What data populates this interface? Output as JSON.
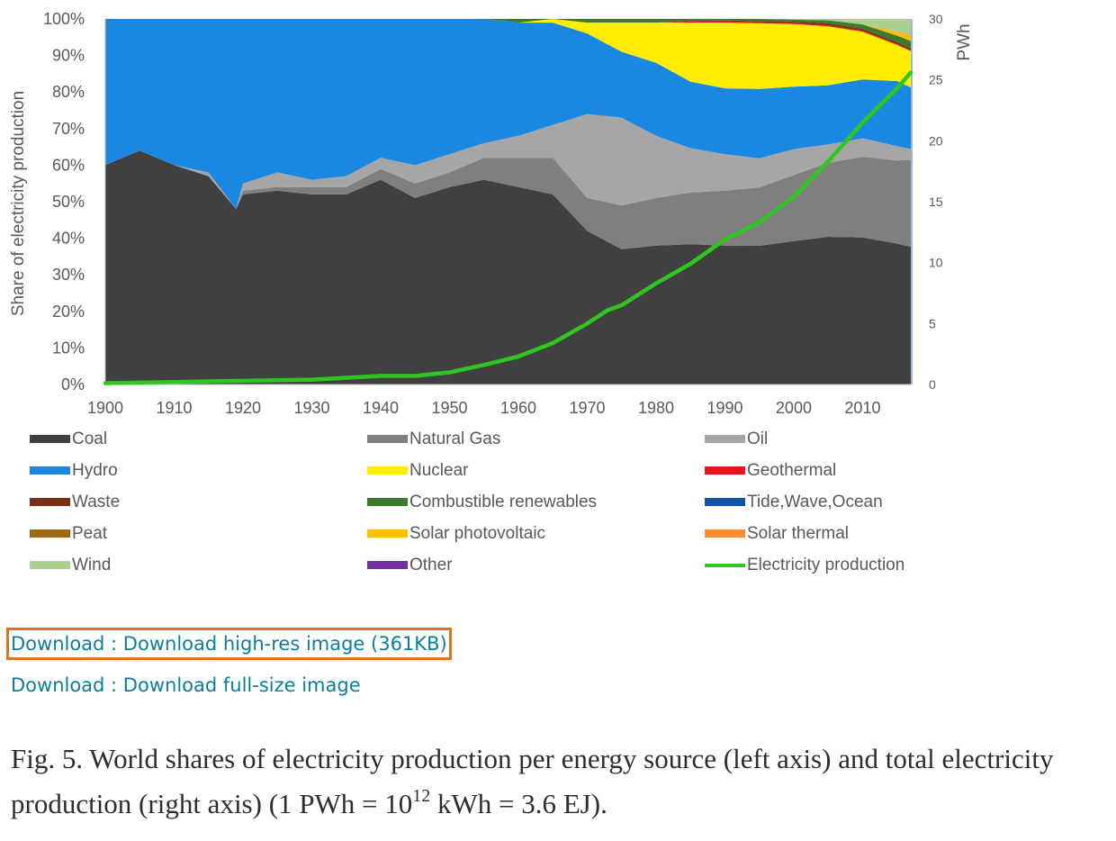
{
  "chart_data": {
    "type": "area",
    "stacking": "percent",
    "x": [
      1900,
      1905,
      1910,
      1915,
      1919,
      1920,
      1925,
      1930,
      1935,
      1940,
      1945,
      1950,
      1955,
      1960,
      1965,
      1970,
      1975,
      1980,
      1985,
      1990,
      1995,
      2000,
      2005,
      2010,
      2015,
      2017
    ],
    "series": [
      {
        "name": "Coal",
        "values": [
          60,
          64,
          60,
          57,
          48,
          52,
          53,
          52,
          52,
          56,
          51,
          54,
          56,
          54,
          52,
          42,
          37,
          38,
          38,
          38,
          38,
          39,
          40,
          40,
          39,
          38
        ]
      },
      {
        "name": "Natural Gas",
        "values": [
          0,
          0,
          0,
          0,
          0,
          1,
          1,
          2,
          2,
          3,
          4,
          4,
          6,
          8,
          10,
          9,
          12,
          13,
          14,
          15,
          16,
          18,
          20,
          22,
          23,
          24
        ]
      },
      {
        "name": "Oil",
        "values": [
          0,
          0,
          0,
          1,
          0,
          2,
          4,
          2,
          3,
          3,
          5,
          5,
          4,
          6,
          9,
          23,
          24,
          17,
          12,
          10,
          8,
          7,
          5,
          5,
          4,
          3
        ]
      },
      {
        "name": "Hydro",
        "values": [
          40,
          36,
          40,
          42,
          52,
          45,
          42,
          44,
          43,
          38,
          40,
          37,
          34,
          31,
          28,
          22,
          18,
          20,
          18,
          18,
          19,
          17,
          16,
          16,
          18,
          17
        ]
      },
      {
        "name": "Nuclear",
        "values": [
          0,
          0,
          0,
          0,
          0,
          0,
          0,
          0,
          0,
          0,
          0,
          0,
          0,
          0,
          1,
          3,
          8,
          11,
          16,
          18,
          18,
          17,
          16,
          13,
          10,
          10
        ]
      },
      {
        "name": "Geothermal",
        "values": [
          0,
          0,
          0,
          0,
          0,
          0,
          0,
          0,
          0,
          0,
          0,
          0,
          0,
          0,
          0,
          0,
          0,
          0,
          0.3,
          0.3,
          0.3,
          0.3,
          0.3,
          0.3,
          0.3,
          0.3
        ]
      },
      {
        "name": "Waste",
        "values": [
          0,
          0,
          0,
          0,
          0,
          0,
          0,
          0,
          0,
          0,
          0,
          0,
          0,
          0,
          0,
          0,
          0,
          0,
          0.2,
          0.3,
          0.3,
          0.4,
          0.5,
          0.5,
          0.5,
          0.5
        ]
      },
      {
        "name": "Combustible renewables",
        "values": [
          0,
          0,
          0,
          0,
          0,
          0,
          0,
          0,
          0,
          0,
          0,
          0,
          0,
          1,
          0,
          1,
          1,
          1,
          0.5,
          0.4,
          0.6,
          0.5,
          0.8,
          1.2,
          1.8,
          2
        ]
      },
      {
        "name": "Tide,Wave,Ocean",
        "values": [
          0,
          0,
          0,
          0,
          0,
          0,
          0,
          0,
          0,
          0,
          0,
          0,
          0,
          0,
          0,
          0,
          0,
          0,
          0,
          0,
          0,
          0,
          0,
          0,
          0,
          0
        ]
      },
      {
        "name": "Peat",
        "values": [
          0,
          0,
          0,
          0,
          0,
          0,
          0,
          0,
          0,
          0,
          0,
          0,
          0,
          0,
          0,
          0,
          0,
          0,
          0,
          0,
          0,
          0,
          0,
          0,
          0,
          0
        ]
      },
      {
        "name": "Solar photovoltaic",
        "values": [
          0,
          0,
          0,
          0,
          0,
          0,
          0,
          0,
          0,
          0,
          0,
          0,
          0,
          0,
          0,
          0,
          0,
          0,
          0,
          0,
          0,
          0,
          0,
          0,
          1,
          1.5
        ]
      },
      {
        "name": "Solar thermal",
        "values": [
          0,
          0,
          0,
          0,
          0,
          0,
          0,
          0,
          0,
          0,
          0,
          0,
          0,
          0,
          0,
          0,
          0,
          0,
          0,
          0,
          0,
          0,
          0,
          0,
          0.1,
          0.1
        ]
      },
      {
        "name": "Wind",
        "values": [
          0,
          0,
          0,
          0,
          0,
          0,
          0,
          0,
          0,
          0,
          0,
          0,
          0,
          0,
          0,
          0,
          0,
          0,
          0,
          0,
          0,
          0.2,
          0.4,
          1.5,
          3.5,
          4.5
        ]
      },
      {
        "name": "Other",
        "values": [
          0,
          0,
          0,
          0,
          0,
          0,
          0,
          0,
          0,
          0,
          0,
          0,
          0,
          0,
          0,
          0,
          0,
          0,
          0,
          0,
          0,
          0,
          0,
          0,
          0,
          0
        ]
      }
    ],
    "line_series": {
      "name": "Electricity production",
      "axis": "right",
      "x": [
        1900,
        1910,
        1920,
        1930,
        1940,
        1945,
        1950,
        1955,
        1960,
        1965,
        1970,
        1973,
        1975,
        1980,
        1985,
        1990,
        1995,
        2000,
        2005,
        2008,
        2010,
        2015,
        2017
      ],
      "values": [
        0.1,
        0.2,
        0.3,
        0.4,
        0.7,
        0.7,
        1.0,
        1.6,
        2.3,
        3.4,
        5.0,
        6.1,
        6.5,
        8.3,
        9.9,
        11.9,
        13.3,
        15.4,
        18.3,
        20.2,
        21.5,
        24.3,
        25.6
      ]
    },
    "title": "",
    "xlabel": "",
    "ylabel": "Share of electricity production",
    "ylabel_right": "PWh",
    "xlim": [
      1900,
      2017
    ],
    "ylim": [
      0,
      100
    ],
    "ylim_right": [
      0,
      30
    ],
    "x_ticks": [
      "1900",
      "1910",
      "1920",
      "1930",
      "1940",
      "1950",
      "1960",
      "1970",
      "1980",
      "1990",
      "2000",
      "2010"
    ],
    "y_ticks": [
      "0%",
      "10%",
      "20%",
      "30%",
      "40%",
      "50%",
      "60%",
      "70%",
      "80%",
      "90%",
      "100%"
    ],
    "y_right_ticks": [
      "0",
      "5",
      "10",
      "15",
      "20",
      "25",
      "30"
    ],
    "legend": "bottom",
    "grid": false
  },
  "colors": {
    "Coal": "#404040",
    "Natural Gas": "#7f7f7f",
    "Oil": "#a6a6a6",
    "Hydro": "#1a88e0",
    "Nuclear": "#ffee00",
    "Geothermal": "#e8141b",
    "Waste": "#7a2e12",
    "Combustible renewables": "#3e7a2c",
    "Tide,Wave,Ocean": "#1054a6",
    "Peat": "#9a6b10",
    "Solar photovoltaic": "#ffbf00",
    "Solar thermal": "#ff8c33",
    "Wind": "#a9d08e",
    "Other": "#7030a0",
    "Electricity production": "#2ec71f"
  },
  "legend_items": [
    {
      "label": "Coal",
      "kind": "area"
    },
    {
      "label": "Natural Gas",
      "kind": "area"
    },
    {
      "label": "Oil",
      "kind": "area"
    },
    {
      "label": "Hydro",
      "kind": "area"
    },
    {
      "label": "Nuclear",
      "kind": "area"
    },
    {
      "label": "Geothermal",
      "kind": "area"
    },
    {
      "label": "Waste",
      "kind": "area"
    },
    {
      "label": "Combustible renewables",
      "kind": "area"
    },
    {
      "label": "Tide,Wave,Ocean",
      "kind": "area"
    },
    {
      "label": "Peat",
      "kind": "area"
    },
    {
      "label": "Solar photovoltaic",
      "kind": "area"
    },
    {
      "label": "Solar thermal",
      "kind": "area"
    },
    {
      "label": "Wind",
      "kind": "area"
    },
    {
      "label": "Other",
      "kind": "area"
    },
    {
      "label": "Electricity production",
      "kind": "line"
    }
  ],
  "downloads": {
    "high_res": "Download : Download high-res image (361KB)",
    "full_size": "Download : Download full-size image"
  },
  "caption": {
    "part1": "Fig. 5. World shares of electricity production per energy source (left axis) and total electricity production (right axis) (1 PWh = 10",
    "sup": "12",
    "part2": " kWh = 3.6 EJ)."
  }
}
